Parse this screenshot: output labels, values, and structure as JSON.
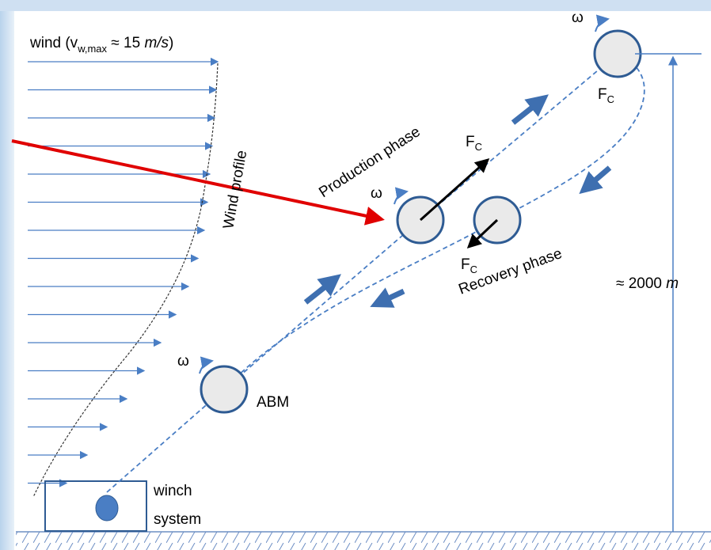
{
  "wind_label": {
    "prefix": "wind (v",
    "subscript": "w,max",
    "middle": " ≈ 15 ",
    "unit": "m/s",
    "suffix": ")"
  },
  "wind_profile_label": "Wind profile",
  "production_phase_label": "Production phase",
  "recovery_phase_label": "Recovery phase",
  "omega_labels": [
    "ω",
    "ω",
    "ω"
  ],
  "force_labels": [
    {
      "symbol": "F",
      "subscript": "C"
    },
    {
      "symbol": "F",
      "subscript": "C"
    },
    {
      "symbol": "F",
      "subscript": "C"
    }
  ],
  "abm_label": "ABM",
  "winch_label": [
    "winch",
    "system"
  ],
  "height_label": {
    "value": "≈ 2000 ",
    "unit": "m"
  }
}
